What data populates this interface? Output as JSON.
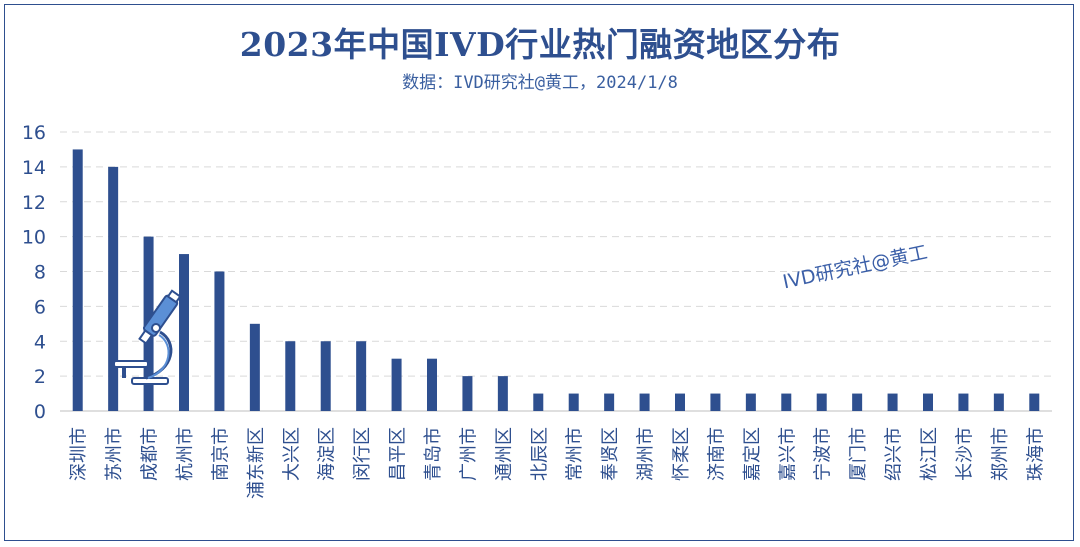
{
  "header": {
    "title": "2023年中国IVD行业热门融资地区分布",
    "subtitle": "数据：IVD研究社@黄工，2024/1/8"
  },
  "watermark": "IVD研究社@黄工",
  "colors": {
    "bar": "#2E4F8F",
    "axis_text": "#2E4F8F",
    "grid": "#D9D9D9",
    "frame": "#2E4F8F"
  },
  "chart_data": {
    "type": "bar",
    "categories": [
      "深圳市",
      "苏州市",
      "成都市",
      "杭州市",
      "南京市",
      "浦东新区",
      "大兴区",
      "海淀区",
      "闵行区",
      "昌平区",
      "青岛市",
      "广州市",
      "通州区",
      "北辰区",
      "常州市",
      "奉贤区",
      "湖州市",
      "怀柔区",
      "济南市",
      "嘉定区",
      "嘉兴市",
      "宁波市",
      "厦门市",
      "绍兴市",
      "松江区",
      "长沙市",
      "郑州市",
      "珠海市"
    ],
    "values": [
      15,
      14,
      10,
      9,
      8,
      5,
      4,
      4,
      4,
      3,
      3,
      2,
      2,
      1,
      1,
      1,
      1,
      1,
      1,
      1,
      1,
      1,
      1,
      1,
      1,
      1,
      1,
      1
    ],
    "yticks": [
      "0",
      "2",
      "4",
      "6",
      "8",
      "10",
      "12",
      "14",
      "16"
    ],
    "ylim": [
      0,
      16
    ],
    "grid": true,
    "legend": "none"
  },
  "decoration": {
    "icon": "microscope-icon"
  }
}
